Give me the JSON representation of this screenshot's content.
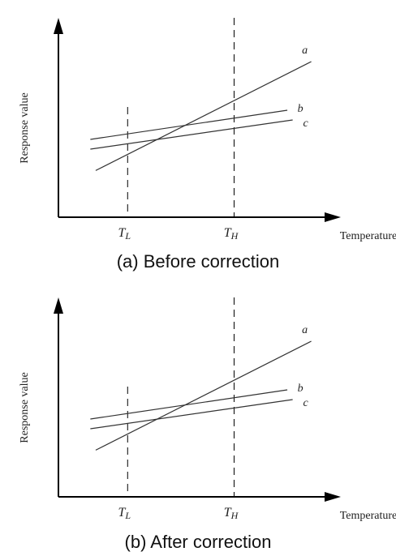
{
  "chart_data": [
    {
      "type": "line",
      "caption": "(a) Before correction",
      "ylabel": "Response value",
      "xlabel": "Temperature",
      "xlim": [
        0,
        1
      ],
      "ylim": [
        0,
        1
      ],
      "x_ticks": [
        {
          "label": "T",
          "sub": "L",
          "x": 0.26
        },
        {
          "label": "T",
          "sub": "H",
          "x": 0.66
        }
      ],
      "series": [
        {
          "name": "a",
          "x": [
            0.14,
            0.95
          ],
          "y": [
            0.24,
            0.8
          ]
        },
        {
          "name": "b",
          "x": [
            0.12,
            0.86
          ],
          "y": [
            0.4,
            0.55
          ]
        },
        {
          "name": "c",
          "x": [
            0.12,
            0.88
          ],
          "y": [
            0.35,
            0.5
          ]
        }
      ],
      "grid": false
    },
    {
      "type": "line",
      "caption": "(b) After correction",
      "ylabel": "Response value",
      "xlabel": "Temperature",
      "xlim": [
        0,
        1
      ],
      "ylim": [
        0,
        1
      ],
      "x_ticks": [
        {
          "label": "T",
          "sub": "L",
          "x": 0.26
        },
        {
          "label": "T",
          "sub": "H",
          "x": 0.66
        }
      ],
      "series": [
        {
          "name": "a",
          "x": [
            0.14,
            0.95
          ],
          "y": [
            0.24,
            0.8
          ]
        },
        {
          "name": "b",
          "x": [
            0.12,
            0.86
          ],
          "y": [
            0.4,
            0.55
          ]
        },
        {
          "name": "c",
          "x": [
            0.12,
            0.88
          ],
          "y": [
            0.35,
            0.5
          ]
        }
      ],
      "grid": false
    }
  ]
}
